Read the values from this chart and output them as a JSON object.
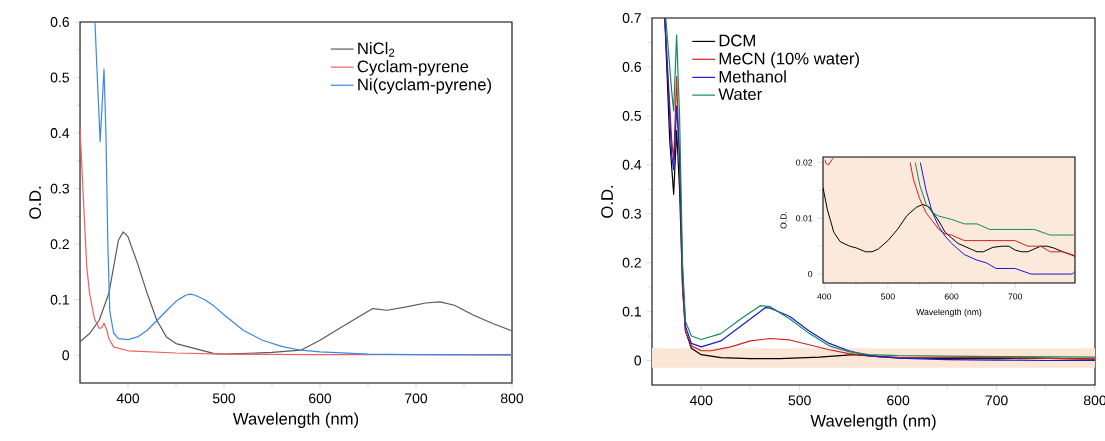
{
  "chart_data": [
    {
      "type": "line",
      "xlabel": "Wavelength (nm)",
      "ylabel": "O.D.",
      "xlim": [
        350,
        800
      ],
      "ylim": [
        -0.05,
        0.6
      ],
      "xticks": [
        400,
        500,
        600,
        700,
        800
      ],
      "yticks": [
        0,
        0.1,
        0.2,
        0.3,
        0.4,
        0.5,
        0.6
      ],
      "legend": "top right",
      "series": [
        {
          "name": "NiCl$_{2}$",
          "color": "#5a5a5a",
          "x": [
            350,
            360,
            370,
            380,
            390,
            395,
            400,
            410,
            420,
            430,
            440,
            450,
            470,
            490,
            500,
            550,
            580,
            600,
            620,
            640,
            655,
            670,
            690,
            710,
            725,
            740,
            760,
            780,
            800
          ],
          "values": [
            0.024,
            0.039,
            0.063,
            0.111,
            0.207,
            0.222,
            0.213,
            0.165,
            0.111,
            0.063,
            0.033,
            0.021,
            0.012,
            0.003,
            0.002,
            0.005,
            0.009,
            0.027,
            0.048,
            0.069,
            0.084,
            0.081,
            0.087,
            0.094,
            0.096,
            0.09,
            0.072,
            0.057,
            0.044
          ]
        },
        {
          "name": "Cyclam-pyrene",
          "color": "#f06060",
          "x": [
            350,
            353,
            357,
            360,
            365,
            370,
            373,
            375,
            378,
            380,
            385,
            400,
            450,
            500,
            600,
            700,
            800
          ],
          "values": [
            0.41,
            0.3,
            0.16,
            0.111,
            0.066,
            0.048,
            0.05,
            0.058,
            0.045,
            0.03,
            0.015,
            0.008,
            0.004,
            0.002,
            0.001,
            0.001,
            0
          ]
        },
        {
          "name": "Ni(cyclam-pyrene)",
          "color": "#3a87e8",
          "x": [
            365.6,
            368,
            371,
            373,
            375,
            377,
            379,
            381,
            385,
            390,
            400,
            410,
            420,
            430,
            440,
            450,
            460,
            465,
            470,
            480,
            490,
            500,
            520,
            540,
            560,
            580,
            600,
            650,
            700,
            800
          ],
          "values": [
            0.6,
            0.5,
            0.385,
            0.45,
            0.515,
            0.4,
            0.2,
            0.08,
            0.04,
            0.03,
            0.028,
            0.033,
            0.045,
            0.062,
            0.08,
            0.097,
            0.108,
            0.11,
            0.108,
            0.1,
            0.088,
            0.073,
            0.045,
            0.027,
            0.016,
            0.009,
            0.006,
            0.002,
            0.001,
            0.001
          ]
        }
      ]
    },
    {
      "type": "line",
      "xlabel": "Wavelength (nm)",
      "ylabel": "O.D.",
      "xlim": [
        350,
        800
      ],
      "ylim": [
        -0.05,
        0.7
      ],
      "xticks": [
        400,
        500,
        600,
        700,
        800
      ],
      "yticks": [
        0,
        0.1,
        0.2,
        0.3,
        0.4,
        0.5,
        0.6,
        0.7
      ],
      "legend": "top left",
      "bands": [
        {
          "axis": "y",
          "from": -0.015,
          "to": 0.025,
          "color": "#fbe6d6"
        }
      ],
      "series": [
        {
          "name": "DCM",
          "color": "#000000",
          "x": [
            363,
            368,
            372,
            375,
            378,
            381,
            384,
            390,
            400,
            420,
            450,
            480,
            520,
            555,
            580,
            600,
            650,
            680,
            700,
            740,
            800
          ],
          "values": [
            0.7,
            0.45,
            0.34,
            0.47,
            0.35,
            0.15,
            0.06,
            0.025,
            0.012,
            0.006,
            0.004,
            0.004,
            0.007,
            0.012,
            0.008,
            0.006,
            0.004,
            0.005,
            0.004,
            0.005,
            0.003
          ]
        },
        {
          "name": "MeCN (10% water)",
          "color": "#d42020",
          "x": [
            363,
            370,
            372,
            375,
            378,
            381,
            384,
            390,
            400,
            410,
            430,
            450,
            470,
            490,
            510,
            530,
            550,
            580,
            600,
            700,
            800
          ],
          "values": [
            0.7,
            0.45,
            0.41,
            0.58,
            0.4,
            0.15,
            0.06,
            0.03,
            0.02,
            0.02,
            0.028,
            0.04,
            0.045,
            0.042,
            0.032,
            0.022,
            0.014,
            0.008,
            0.006,
            0.006,
            0.003
          ]
        },
        {
          "name": "Methanol",
          "color": "#1a1ad0",
          "x": [
            363,
            370,
            372,
            375,
            378,
            381,
            384,
            390,
            400,
            420,
            440,
            460,
            465,
            470,
            490,
            510,
            530,
            550,
            570,
            600,
            650,
            700,
            750,
            800
          ],
          "values": [
            0.7,
            0.42,
            0.39,
            0.52,
            0.42,
            0.18,
            0.07,
            0.035,
            0.028,
            0.04,
            0.07,
            0.1,
            0.108,
            0.107,
            0.09,
            0.06,
            0.035,
            0.02,
            0.01,
            0.005,
            0.002,
            0.001,
            0,
            0
          ]
        },
        {
          "name": "Water",
          "color": "#148a5a",
          "x": [
            364,
            370,
            372,
            375,
            378,
            381,
            384,
            390,
            400,
            420,
            440,
            460,
            470,
            490,
            510,
            530,
            550,
            570,
            600,
            700,
            800
          ],
          "values": [
            0.7,
            0.55,
            0.51,
            0.665,
            0.5,
            0.2,
            0.08,
            0.05,
            0.043,
            0.055,
            0.085,
            0.112,
            0.11,
            0.085,
            0.055,
            0.03,
            0.018,
            0.012,
            0.01,
            0.008,
            0.007
          ]
        }
      ]
    },
    {
      "type": "line",
      "xlabel": "Wavelength (nm)",
      "ylabel": "O.D.",
      "xlim": [
        398,
        794
      ],
      "ylim": [
        -0.0016,
        0.021
      ],
      "xticks": [
        400,
        500,
        600,
        700
      ],
      "yticks": [
        0,
        0.01,
        0.02
      ],
      "series": [
        {
          "color": "#000000",
          "x": [
            398,
            405,
            415,
            425,
            440,
            450,
            465,
            475,
            485,
            500,
            515,
            530,
            545,
            555,
            565,
            580,
            590,
            600,
            610,
            630,
            640,
            650,
            665,
            680,
            690,
            700,
            710,
            720,
            740,
            750,
            760,
            775,
            794
          ],
          "values": [
            0.0155,
            0.0115,
            0.0075,
            0.0058,
            0.005,
            0.0047,
            0.004,
            0.004,
            0.0045,
            0.006,
            0.008,
            0.0105,
            0.012,
            0.0125,
            0.012,
            0.0095,
            0.0075,
            0.0065,
            0.0055,
            0.0045,
            0.004,
            0.004,
            0.0048,
            0.005,
            0.005,
            0.0043,
            0.004,
            0.004,
            0.005,
            0.005,
            0.0047,
            0.004,
            0.0032
          ]
        },
        {
          "color": "#d42020",
          "x": [
            401,
            403,
            407,
            412,
            414,
            470,
            535,
            540,
            550,
            560,
            570,
            580,
            590,
            600,
            610,
            620,
            700,
            720,
            740,
            755,
            775,
            794
          ],
          "values": [
            0.0205,
            0.0198,
            0.0196,
            0.0205,
            0.0208,
            null,
            0.02,
            0.017,
            0.0135,
            0.011,
            0.0095,
            0.008,
            0.0072,
            0.007,
            0.0065,
            0.006,
            0.006,
            0.005,
            0.005,
            0.004,
            0.004,
            0.0033
          ]
        },
        {
          "color": "#1a1ad0",
          "x": [
            551,
            560,
            570,
            580,
            590,
            600,
            610,
            620,
            640,
            655,
            670,
            700,
            725,
            790,
            794
          ],
          "values": [
            0.02,
            0.015,
            0.011,
            0.0085,
            0.0068,
            0.0055,
            0.0045,
            0.0035,
            0.0025,
            0.002,
            0.001,
            0.001,
            0,
            0,
            0.0005
          ]
        },
        {
          "color": "#148a5a",
          "x": [
            543,
            550,
            560,
            570,
            580,
            600,
            620,
            640,
            660,
            730,
            755,
            792
          ],
          "values": [
            0.02,
            0.016,
            0.0125,
            0.011,
            0.0104,
            0.0098,
            0.009,
            0.009,
            0.008,
            0.008,
            0.007,
            0.007
          ]
        }
      ]
    }
  ]
}
